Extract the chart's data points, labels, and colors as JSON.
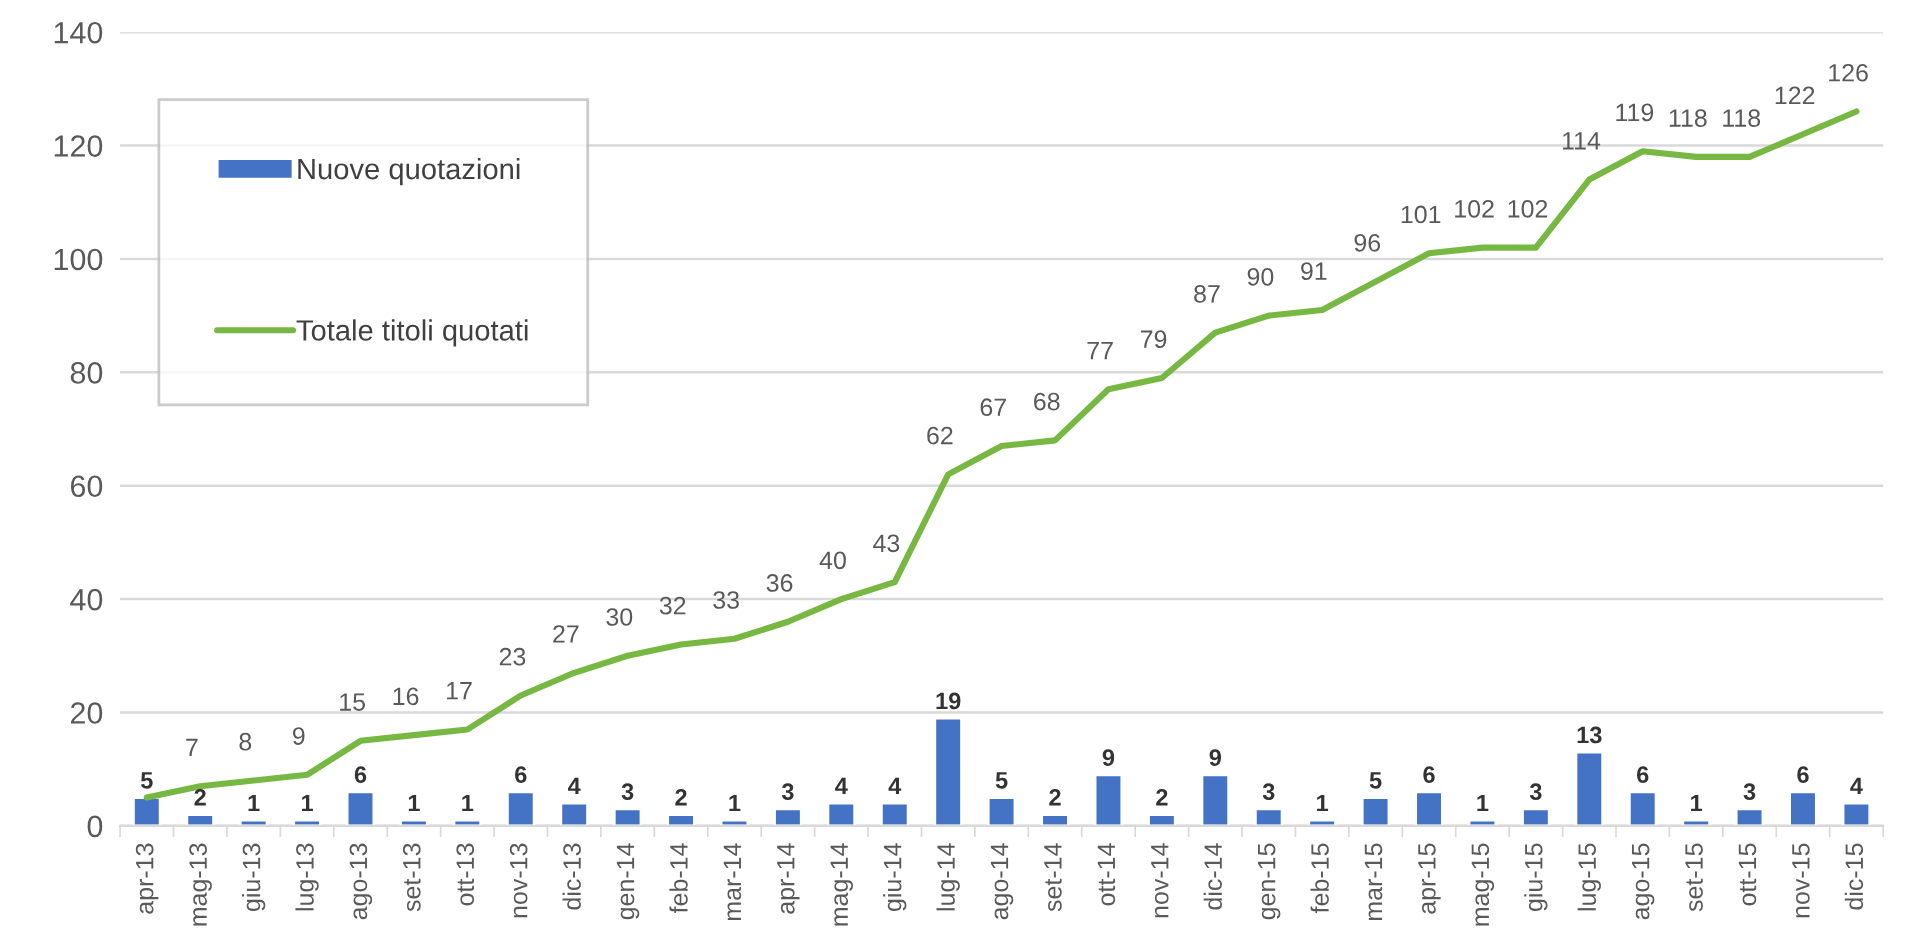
{
  "chart_data": {
    "type": "bar",
    "categories": [
      "apr-13",
      "mag-13",
      "giu-13",
      "lug-13",
      "ago-13",
      "set-13",
      "ott-13",
      "nov-13",
      "dic-13",
      "gen-14",
      "feb-14",
      "mar-14",
      "apr-14",
      "mag-14",
      "giu-14",
      "lug-14",
      "ago-14",
      "set-14",
      "ott-14",
      "nov-14",
      "dic-14",
      "gen-15",
      "feb-15",
      "mar-15",
      "apr-15",
      "mag-15",
      "giu-15",
      "lug-15",
      "ago-15",
      "set-15",
      "ott-15",
      "nov-15",
      "dic-15"
    ],
    "series": [
      {
        "name": "Nuove quotazioni",
        "color": "#4472c4",
        "values": [
          5,
          2,
          1,
          1,
          6,
          1,
          1,
          6,
          4,
          3,
          2,
          1,
          3,
          4,
          4,
          19,
          5,
          2,
          9,
          2,
          9,
          3,
          1,
          5,
          6,
          1,
          3,
          13,
          6,
          1,
          3,
          6,
          4
        ],
        "value_labels": [
          "5",
          "2",
          "1",
          "1",
          "6",
          "1",
          "1",
          "6",
          "4",
          "3",
          "2",
          "1",
          "3",
          "4",
          "4",
          "19",
          "5",
          "2",
          "9",
          "2",
          "9",
          "3",
          "1",
          "5",
          "6",
          "1",
          "3",
          "13",
          "6",
          "1",
          "3",
          "6",
          "4"
        ]
      },
      {
        "name": "Totale titoli quotati",
        "type": "line",
        "color": "#77b843",
        "values": [
          5,
          7,
          8,
          9,
          15,
          16,
          17,
          23,
          27,
          30,
          32,
          33,
          36,
          40,
          43,
          62,
          67,
          68,
          77,
          79,
          87,
          90,
          91,
          96,
          101,
          102,
          102,
          114,
          119,
          118,
          118,
          122,
          126
        ],
        "value_labels": [
          null,
          "7",
          "8",
          "9",
          "15",
          "16",
          "17",
          "23",
          "27",
          "30",
          "32",
          "33",
          "36",
          "40",
          "43",
          "62",
          "67",
          "68",
          "77",
          "79",
          "87",
          "90",
          "91",
          "96",
          "101",
          "102",
          "102",
          "114",
          "119",
          "118",
          "118",
          "122",
          "126"
        ]
      }
    ],
    "ylim": [
      0,
      140
    ],
    "yticks": [
      0,
      20,
      40,
      60,
      80,
      100,
      120,
      140
    ],
    "grid": "y",
    "legend": "top left",
    "marker": "none",
    "line_style": "solid"
  }
}
